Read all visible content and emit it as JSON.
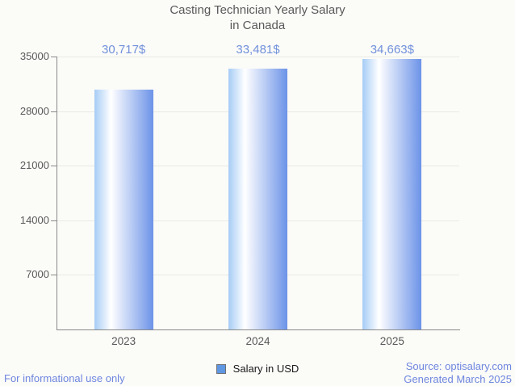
{
  "header": {
    "title_lines": [
      "Casting Technician Yearly Salary",
      "in Canada"
    ]
  },
  "chart_data": {
    "type": "bar",
    "title": "Casting Technician Yearly Salary in Canada",
    "categories": [
      "2023",
      "2024",
      "2025"
    ],
    "series": [
      {
        "name": "Salary in USD",
        "values": [
          30717,
          33481,
          34663
        ]
      }
    ],
    "value_labels": [
      "30,717$",
      "33,481$",
      "34,663$"
    ],
    "xlabel": "",
    "ylabel": "",
    "ylim": [
      0,
      35000
    ],
    "yticks": [
      7000,
      14000,
      21000,
      28000,
      35000
    ],
    "grid": true,
    "legend_position": "bottom"
  },
  "footer": {
    "left": "For informational use only",
    "source": "Source: optisalary.com",
    "generated": "Generated March 2025"
  },
  "colors": {
    "bar_gradient": [
      "#A6CCF5",
      "#FFFFFF",
      "#6C93E8"
    ],
    "value_label_text": "#7191DB",
    "footer_text": "#6E86DF",
    "legend_swatch": "#5F97E3",
    "title_text": "#595959",
    "axis_line": "#8A8A8A",
    "gridline": "#E9E9E6"
  }
}
